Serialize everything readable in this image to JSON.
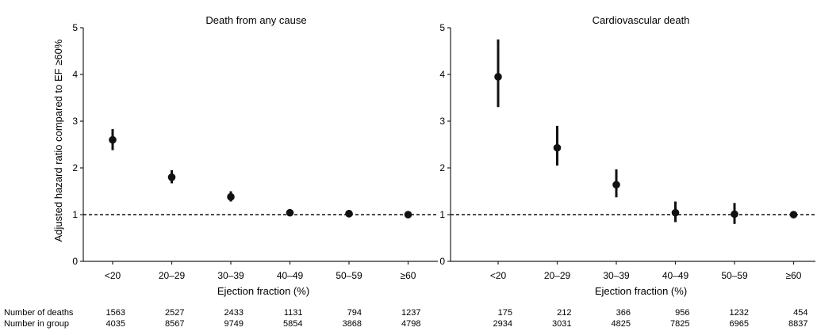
{
  "chart_data": [
    {
      "type": "scatter",
      "title": "Death from any cause",
      "xlabel": "Ejection fraction (%)",
      "ylabel": "Adjusted hazard ratio compared to EF ≥60%",
      "categories": [
        "<20",
        "20–29",
        "30–39",
        "40–49",
        "50–59",
        "≥60"
      ],
      "yticks": [
        "0",
        "1",
        "2",
        "3",
        "4",
        "5"
      ],
      "ylim": [
        0,
        5
      ],
      "reference_line": 1,
      "series": [
        {
          "values": [
            2.6,
            1.8,
            1.38,
            1.04,
            1.02,
            1.0
          ],
          "ci_low": [
            2.38,
            1.67,
            1.28,
            0.97,
            0.95,
            1.0
          ],
          "ci_high": [
            2.83,
            1.95,
            1.5,
            1.12,
            1.1,
            1.0
          ]
        }
      ],
      "table_rows": [
        {
          "label": "Number of deaths",
          "values": [
            "1563",
            "2527",
            "2433",
            "1131",
            "794",
            "1237"
          ]
        },
        {
          "label": "Number in group",
          "values": [
            "4035",
            "8567",
            "9749",
            "5854",
            "3868",
            "4798"
          ]
        }
      ]
    },
    {
      "type": "scatter",
      "title": "Cardiovascular death",
      "xlabel": "Ejection fraction (%)",
      "ylabel": "",
      "categories": [
        "<20",
        "20–29",
        "30–39",
        "40–49",
        "50–59",
        "≥60"
      ],
      "yticks": [
        "0",
        "1",
        "2",
        "3",
        "4",
        "5"
      ],
      "ylim": [
        0,
        5
      ],
      "reference_line": 1,
      "series": [
        {
          "values": [
            3.95,
            2.43,
            1.64,
            1.04,
            1.01,
            1.0
          ],
          "ci_low": [
            3.3,
            2.05,
            1.37,
            0.84,
            0.8,
            1.0
          ],
          "ci_high": [
            4.75,
            2.9,
            1.97,
            1.28,
            1.25,
            1.0
          ]
        }
      ],
      "table_rows": [
        {
          "label": "",
          "values": [
            "175",
            "212",
            "366",
            "956",
            "1232",
            "454"
          ]
        },
        {
          "label": "",
          "values": [
            "2934",
            "3031",
            "4825",
            "7825",
            "6965",
            "8837"
          ]
        }
      ]
    }
  ]
}
